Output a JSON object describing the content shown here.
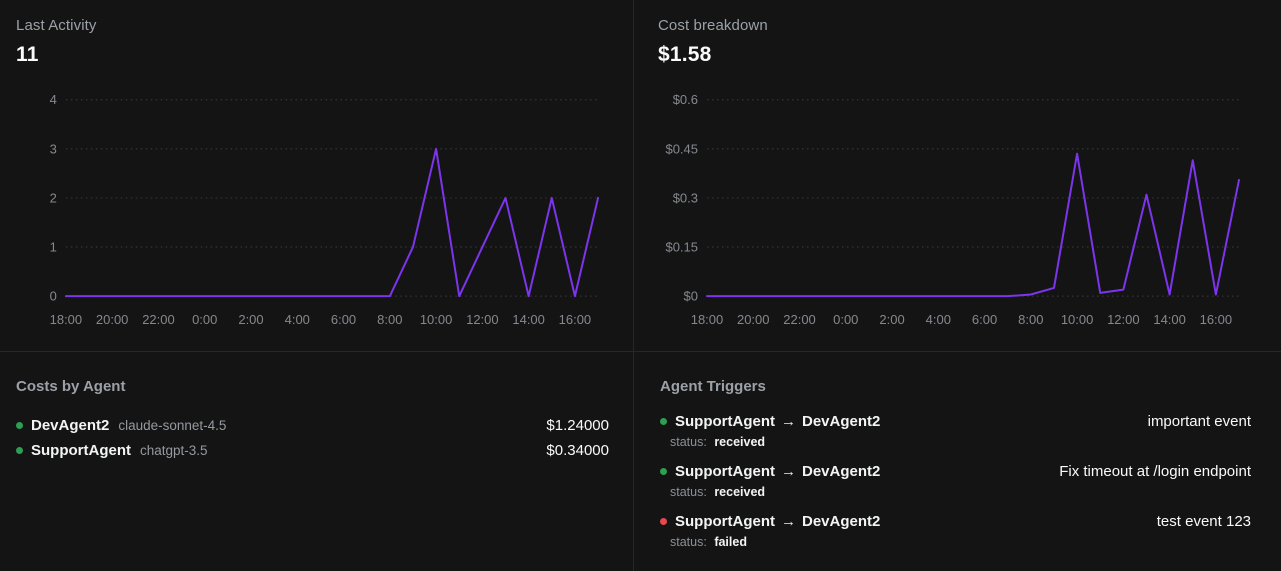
{
  "theme": {
    "background": "#141414",
    "divider": "#272727",
    "accent_line": "#7c35ed",
    "gridline": "#3d3d42",
    "axis_label": "#85898f",
    "text_primary": "#fafafa",
    "text_muted": "#9ba1a7",
    "green_dot": "#2e9e54",
    "red_dot": "#e5484d"
  },
  "panels": {
    "activity": {
      "title": "Last Activity",
      "value": "11"
    },
    "cost": {
      "title": "Cost breakdown",
      "value": "$1.58"
    }
  },
  "chart_data": [
    {
      "id": "last-activity",
      "type": "line",
      "title": "Last Activity",
      "total_label": "11",
      "x": [
        "18:00",
        "19:00",
        "20:00",
        "21:00",
        "22:00",
        "23:00",
        "0:00",
        "1:00",
        "2:00",
        "3:00",
        "4:00",
        "5:00",
        "6:00",
        "7:00",
        "8:00",
        "9:00",
        "10:00",
        "11:00",
        "12:00",
        "13:00",
        "14:00",
        "15:00",
        "16:00",
        "17:00"
      ],
      "values": [
        0,
        0,
        0,
        0,
        0,
        0,
        0,
        0,
        0,
        0,
        0,
        0,
        0,
        0,
        0,
        1,
        3,
        0,
        1,
        2,
        0,
        2,
        0,
        2
      ],
      "ylim": [
        0,
        4
      ],
      "yticks": [
        0,
        1,
        2,
        3,
        4
      ],
      "ytick_labels": [
        "0",
        "1",
        "2",
        "3",
        "4"
      ],
      "xtick_every": 2,
      "grid": "dotted-horizontal",
      "legend": "none",
      "xlabel": "",
      "ylabel": ""
    },
    {
      "id": "cost-breakdown",
      "type": "line",
      "title": "Cost breakdown",
      "total_label": "$1.58",
      "x": [
        "18:00",
        "19:00",
        "20:00",
        "21:00",
        "22:00",
        "23:00",
        "0:00",
        "1:00",
        "2:00",
        "3:00",
        "4:00",
        "5:00",
        "6:00",
        "7:00",
        "8:00",
        "9:00",
        "10:00",
        "11:00",
        "12:00",
        "13:00",
        "14:00",
        "15:00",
        "16:00",
        "17:00"
      ],
      "values": [
        0,
        0,
        0,
        0,
        0,
        0,
        0,
        0,
        0,
        0,
        0,
        0,
        0,
        0,
        0.005,
        0.025,
        0.435,
        0.01,
        0.02,
        0.31,
        0.005,
        0.415,
        0.005,
        0.355
      ],
      "ylim": [
        0,
        0.6
      ],
      "yticks": [
        0,
        0.15,
        0.3,
        0.45,
        0.6
      ],
      "ytick_labels": [
        "$0",
        "$0.15",
        "$0.3",
        "$0.45",
        "$0.6"
      ],
      "xtick_every": 2,
      "grid": "dotted-horizontal",
      "legend": "none",
      "xlabel": "",
      "ylabel": ""
    }
  ],
  "costs_by_agent": {
    "title": "Costs by Agent",
    "rows": [
      {
        "agent": "DevAgent2",
        "model": "claude-sonnet-4.5",
        "cost": "$1.24000",
        "dot_color": "#2e9e54"
      },
      {
        "agent": "SupportAgent",
        "model": "chatgpt-3.5",
        "cost": "$0.34000",
        "dot_color": "#2e9e54"
      }
    ]
  },
  "agent_triggers": {
    "title": "Agent Triggers",
    "rows": [
      {
        "source": "SupportAgent",
        "arrow": "→",
        "target": "DevAgent2",
        "event": "important event",
        "status_label": "status:",
        "status": "received",
        "dot_color": "#2e9e54"
      },
      {
        "source": "SupportAgent",
        "arrow": "→",
        "target": "DevAgent2",
        "event": "Fix timeout at /login endpoint",
        "status_label": "status:",
        "status": "received",
        "dot_color": "#2e9e54"
      },
      {
        "source": "SupportAgent",
        "arrow": "→",
        "target": "DevAgent2",
        "event": "test event 123",
        "status_label": "status:",
        "status": "failed",
        "dot_color": "#e5484d"
      }
    ]
  }
}
